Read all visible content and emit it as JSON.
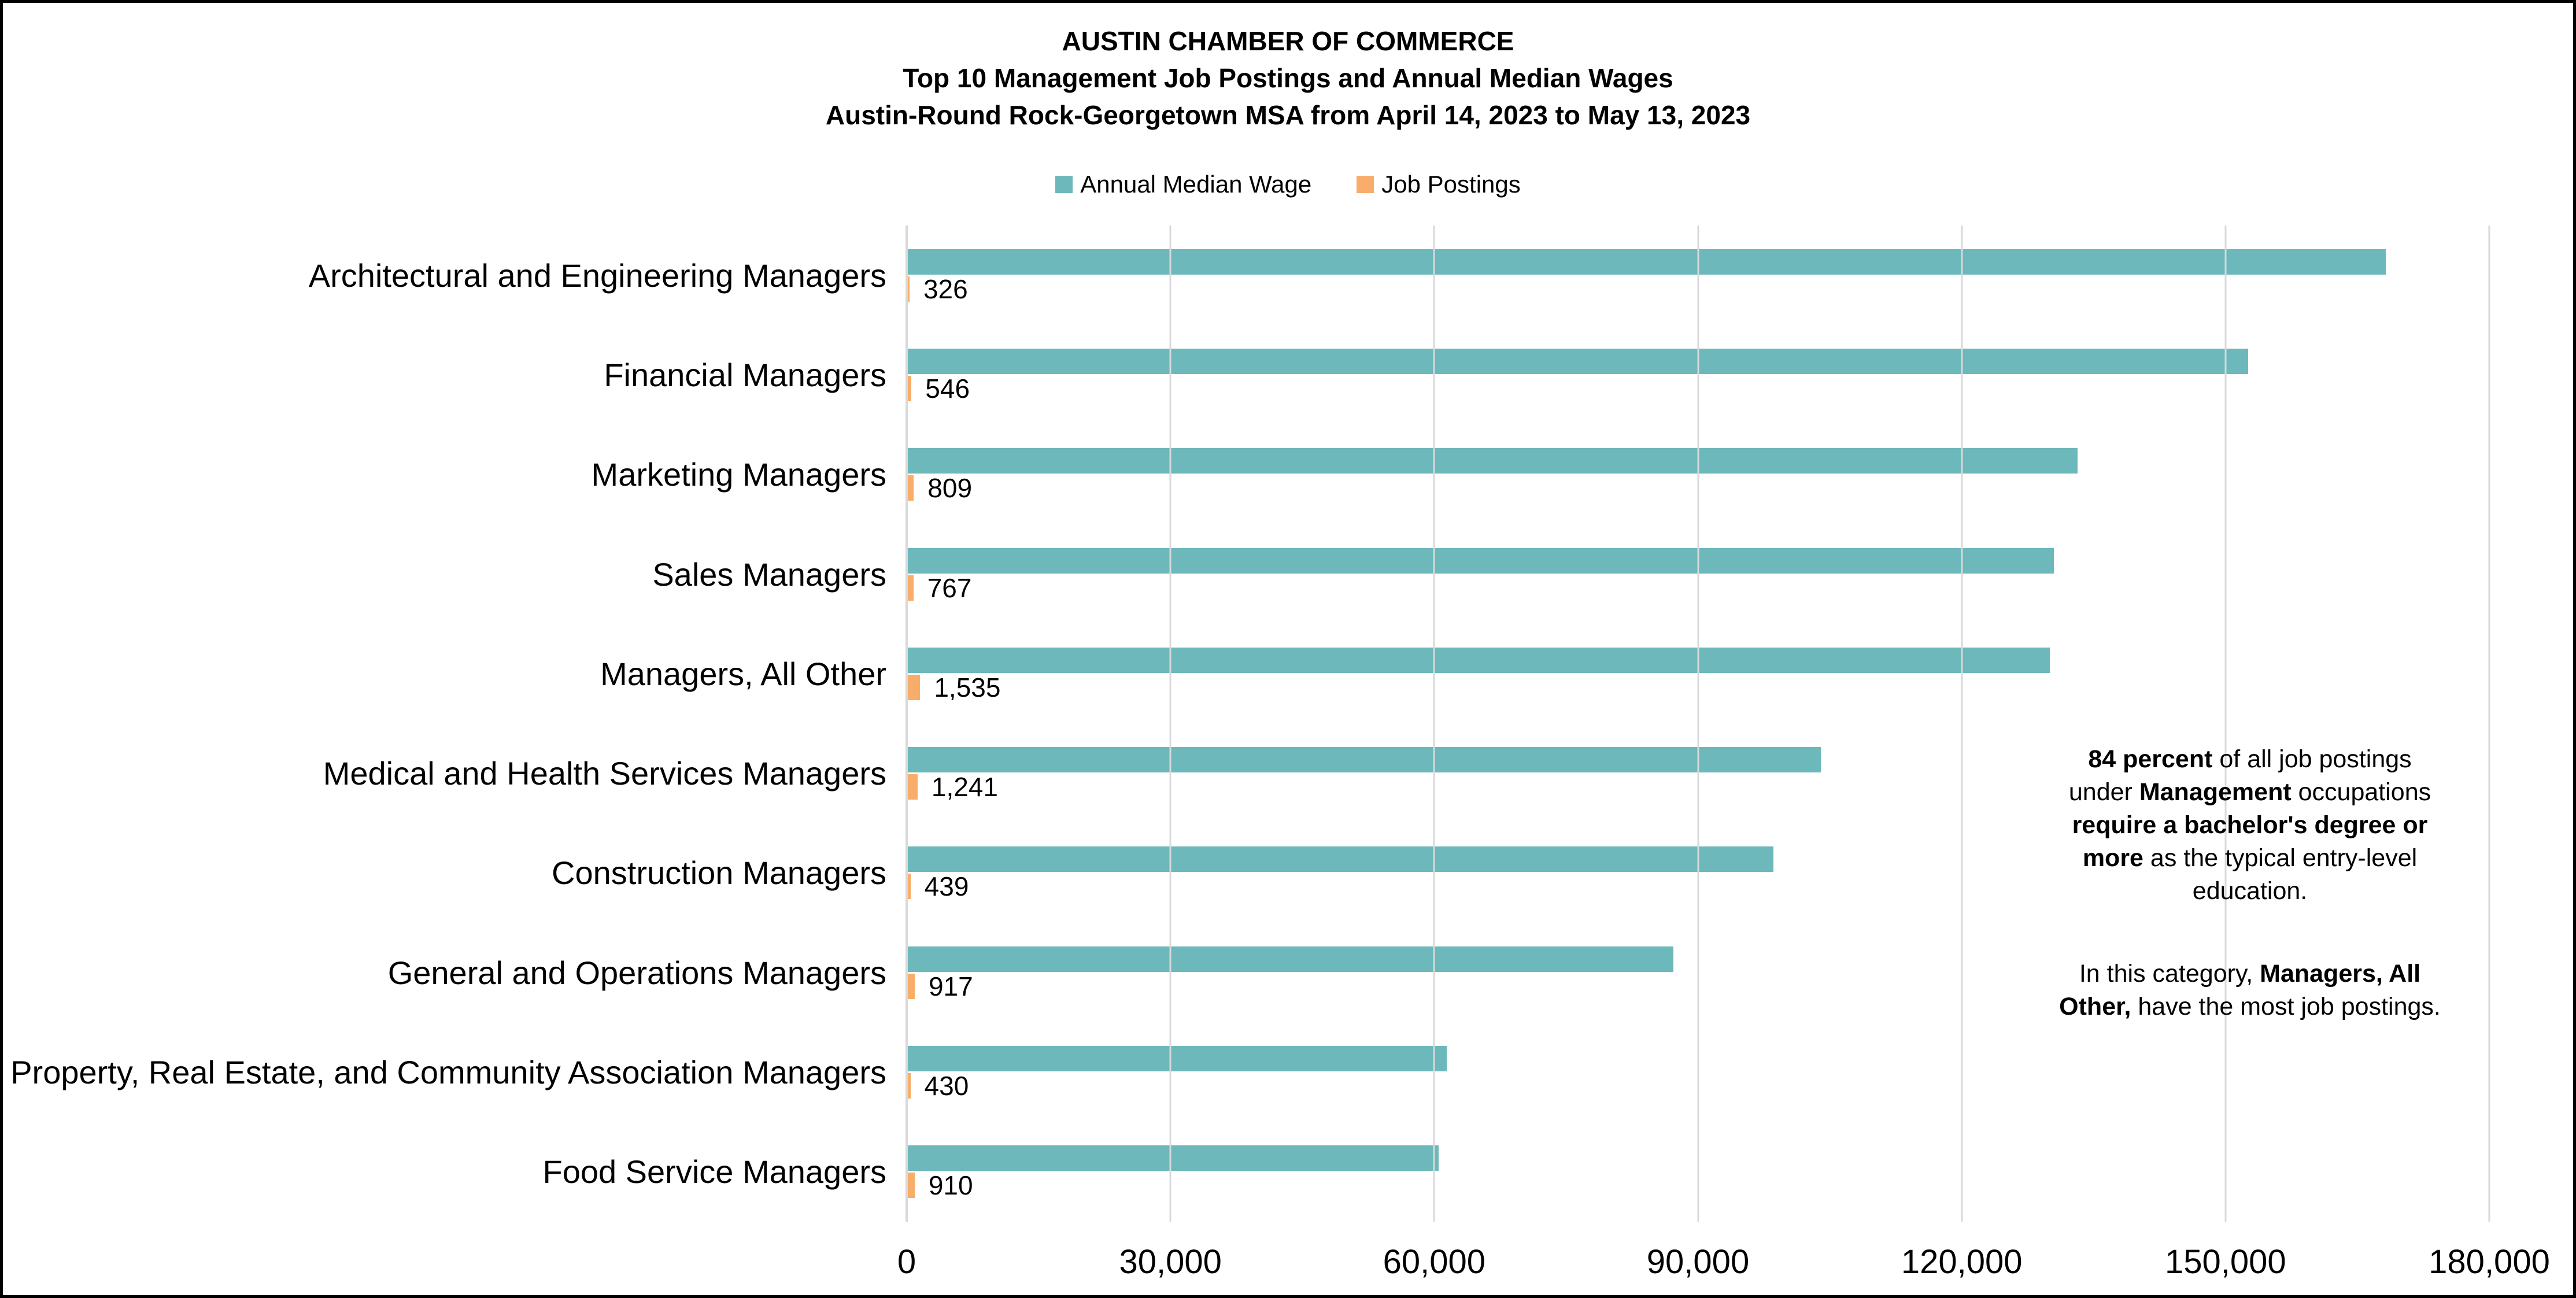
{
  "title": {
    "line1": "AUSTIN CHAMBER OF COMMERCE",
    "line2": "Top 10 Management Job Postings and Annual Median Wages",
    "line3": "Austin-Round Rock-Georgetown MSA from April 14, 2023 to May 13, 2023"
  },
  "legend": [
    {
      "label": "Annual Median Wage",
      "color": "#6CB8BA"
    },
    {
      "label": "Job Postings",
      "color": "#F8AD6A"
    }
  ],
  "colors": {
    "wage_bar": "#6CB8BA",
    "postings_bar": "#F8AD6A",
    "gridline": "#d9d9d9"
  },
  "chart_data": {
    "type": "bar",
    "orientation": "horizontal",
    "title": "Top 10 Management Job Postings and Annual Median Wages",
    "categories": [
      "Architectural and Engineering Managers",
      "Financial Managers",
      "Marketing Managers",
      "Sales Managers",
      "Managers, All Other",
      "Medical and Health Services Managers",
      "Construction Managers",
      "General and Operations Managers",
      "Property, Real Estate, and Community Association Managers",
      "Food Service Managers"
    ],
    "series": [
      {
        "name": "Annual Median Wage",
        "color": "#6CB8BA",
        "values": [
          168200,
          152600,
          133200,
          130500,
          130000,
          104000,
          98600,
          87200,
          61400,
          60500
        ]
      },
      {
        "name": "Job Postings",
        "color": "#F8AD6A",
        "values": [
          326,
          546,
          809,
          767,
          1535,
          1241,
          439,
          917,
          430,
          910
        ],
        "data_labels": [
          "326",
          "546",
          "809",
          "767",
          "1,535",
          "1,241",
          "439",
          "917",
          "430",
          "910"
        ]
      }
    ],
    "xlim": [
      0,
      180000
    ],
    "x_ticks": [
      {
        "value": 0,
        "label": "0"
      },
      {
        "value": 30000,
        "label": "30,000"
      },
      {
        "value": 60000,
        "label": "60,000"
      },
      {
        "value": 90000,
        "label": "90,000"
      },
      {
        "value": 120000,
        "label": "120,000"
      },
      {
        "value": 150000,
        "label": "150,000"
      },
      {
        "value": 180000,
        "label": "180,000"
      }
    ],
    "gridlines": true,
    "legend_position": "top"
  },
  "annotation": {
    "paragraphs": [
      {
        "lines": [
          [
            {
              "t": "84 percent",
              "b": true
            },
            {
              "t": " of all job postings",
              "b": false
            }
          ],
          [
            {
              "t": "under ",
              "b": false
            },
            {
              "t": "Management",
              "b": true
            },
            {
              "t": " occupations",
              "b": false
            }
          ],
          [
            {
              "t": "require a bachelor's degree or",
              "b": true
            }
          ],
          [
            {
              "t": "more",
              "b": true
            },
            {
              "t": " as the typical entry-level",
              "b": false
            }
          ],
          [
            {
              "t": "education.",
              "b": false
            }
          ]
        ]
      },
      {
        "lines": [
          [
            {
              "t": "In this category, ",
              "b": false
            },
            {
              "t": "Managers, All",
              "b": true
            }
          ],
          [
            {
              "t": "Other,",
              "b": true
            },
            {
              "t": " have the most job postings.",
              "b": false
            }
          ]
        ]
      }
    ]
  }
}
